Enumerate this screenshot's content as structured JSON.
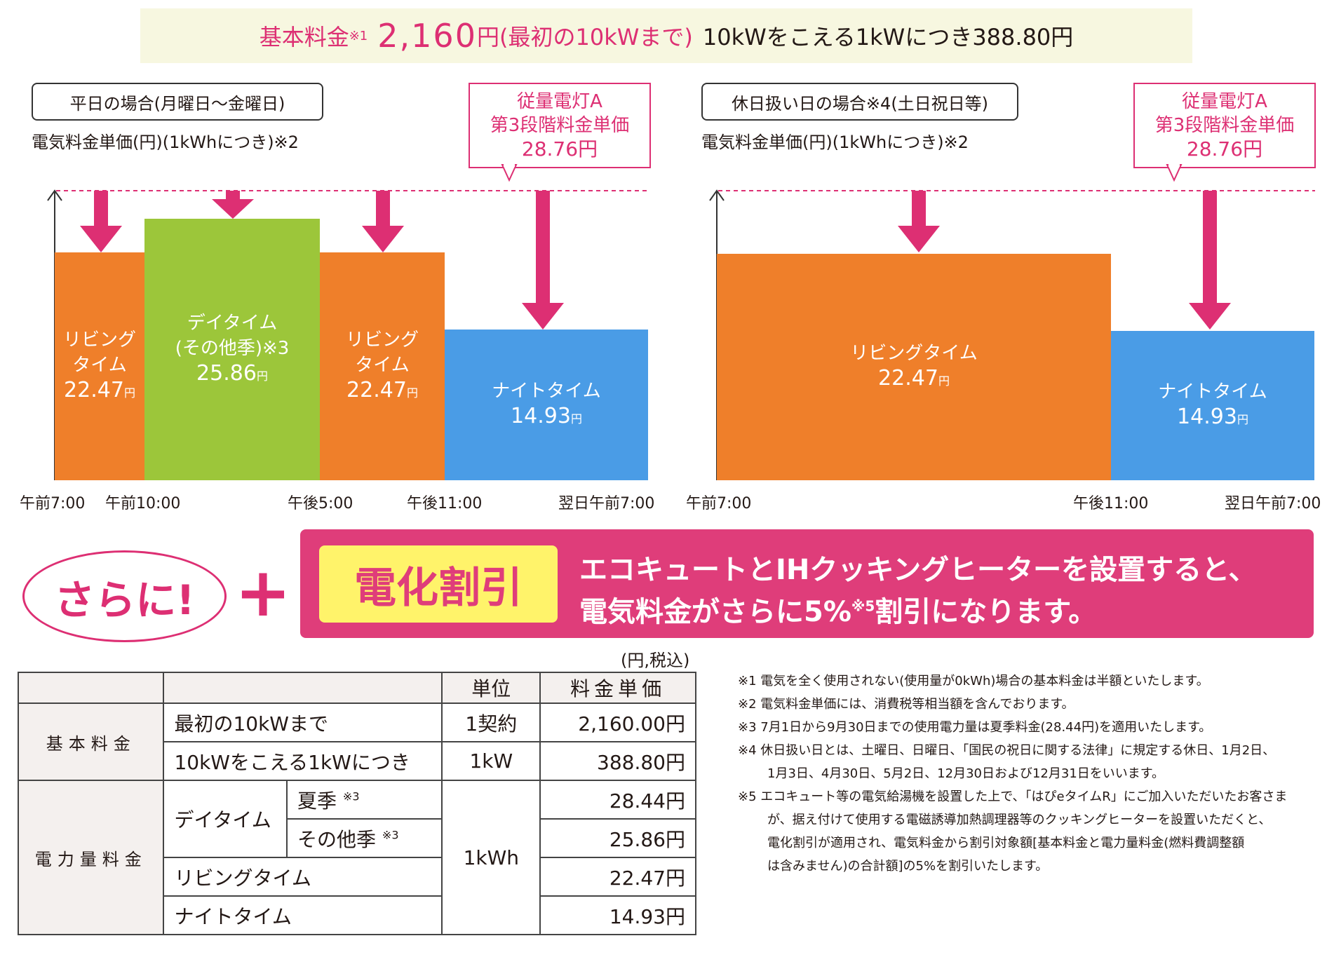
{
  "header": {
    "basic_label": "基本料金",
    "note_mark": "※1",
    "basic_price": "2,160",
    "yen": "円",
    "basic_condition": "(最初の10kWまで)",
    "additional": "10kWをこえる1kWにつき388.80円"
  },
  "weekday_chart": {
    "title": "平日の場合(月曜日～金曜日)",
    "unit_label": "電気料金単価(円)(1kWhにつき)※2",
    "callout": [
      "従量電灯A",
      "第3段階料金単価",
      "28.76円"
    ],
    "bars": [
      {
        "lines": [
          "リビング",
          "タイム"
        ],
        "price": "22.47",
        "unit": "円"
      },
      {
        "lines": [
          "デイタイム",
          "(その他季)※3"
        ],
        "price": "25.86",
        "unit": "円"
      },
      {
        "lines": [
          "リビング",
          "タイム"
        ],
        "price": "22.47",
        "unit": "円"
      },
      {
        "lines": [
          "ナイトタイム"
        ],
        "price": "14.93",
        "unit": "円"
      }
    ],
    "ticks": [
      "午前7:00",
      "午前10:00",
      "午後5:00",
      "午後11:00",
      "翌日午前7:00"
    ]
  },
  "holiday_chart": {
    "title": "休日扱い日の場合※4(土日祝日等)",
    "unit_label": "電気料金単価(円)(1kWhにつき)※2",
    "callout": [
      "従量電灯A",
      "第3段階料金単価",
      "28.76円"
    ],
    "bars": [
      {
        "lines": [
          "リビングタイム"
        ],
        "price": "22.47",
        "unit": "円"
      },
      {
        "lines": [
          "ナイトタイム"
        ],
        "price": "14.93",
        "unit": "円"
      }
    ],
    "ticks": [
      "午前7:00",
      "午後11:00",
      "翌日午前7:00"
    ]
  },
  "promo": {
    "oval": "さらに!",
    "plus": "+",
    "badge": "電化割引",
    "line1": "エコキュートとIHクッキングヒーターを設置すると、",
    "line2a": "電気料金がさらに5%",
    "line2_note": "※5",
    "line2b": "割引になります。"
  },
  "table": {
    "tax_note": "(円,税込)",
    "col_unit": "単位",
    "col_price": "料金単価",
    "basic": "基本料金",
    "energy": "電力量料金",
    "rows": {
      "first10": "最初の10kWまで",
      "first10_unit": "1契約",
      "first10_price": "2,160.00円",
      "over10": "10kWをこえる1kWにつき",
      "over10_unit": "1kW",
      "over10_price": "388.80円",
      "daytime": "デイタイム",
      "summer": "夏季",
      "summer_note": "※3",
      "summer_price": "28.44円",
      "other": "その他季",
      "other_note": "※3",
      "other_price": "25.86円",
      "kwh": "1kWh",
      "living": "リビングタイム",
      "living_price": "22.47円",
      "night": "ナイトタイム",
      "night_price": "14.93円"
    }
  },
  "notes": [
    "※1 電気を全く使用されない(使用量が0kWh)場合の基本料金は半額といたします。",
    "※2 電気料金単価には、消費税等相当額を含んでおります。",
    "※3 7月1日から9月30日までの使用電力量は夏季料金(28.44円)を適用いたします。",
    "※4 休日扱い日とは、土曜日、日曜日、「国民の祝日に関する法律」に規定する休日、1月2日、",
    "1月3日、4月30日、5月2日、12月30日および12月31日をいいます。",
    "※5 エコキュート等の電気給湯機を設置した上で、「はぴeタイムR」にご加入いただいたお客さま",
    "が、据え付けて使用する電磁誘導加熱調理器等のクッキングヒーターを設置いただくと、",
    "電化割引が適用され、電気料金から割引対象額[基本料金と電力量料金(燃料費調整額",
    "は含みません)の合計額]の5%を割引いたします。"
  ],
  "colors": {
    "pink": "#dd2f73",
    "orange": "#ef7f2a",
    "green": "#9cc63a",
    "blue": "#4a9ce6",
    "yellow": "#fff36a"
  }
}
